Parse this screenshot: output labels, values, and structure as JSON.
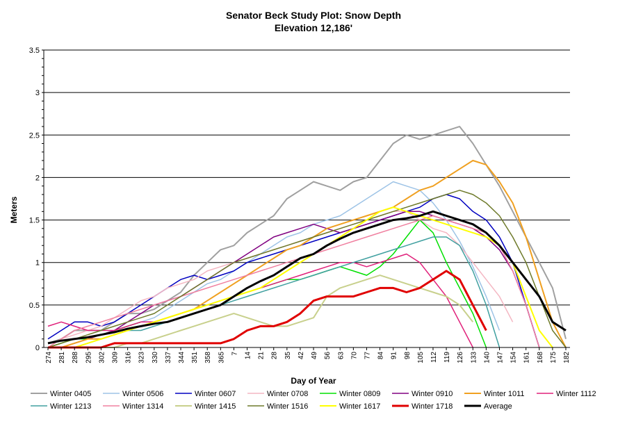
{
  "chart_data": {
    "type": "line",
    "title": "Senator Beck Study Plot: Snow Depth",
    "subtitle": "Elevation 12,186'",
    "xlabel": "Day of Year",
    "ylabel": "Meters",
    "ylim": [
      0,
      3.5
    ],
    "yticks": [
      "0",
      "0.5",
      "1",
      "1.5",
      "2",
      "2.5",
      "3",
      "3.5"
    ],
    "x": [
      "274",
      "281",
      "288",
      "295",
      "302",
      "309",
      "316",
      "323",
      "330",
      "337",
      "344",
      "351",
      "358",
      "365",
      "7",
      "14",
      "21",
      "28",
      "35",
      "42",
      "49",
      "56",
      "63",
      "70",
      "77",
      "84",
      "91",
      "98",
      "105",
      "112",
      "119",
      "126",
      "133",
      "140",
      "147",
      "154",
      "161",
      "168",
      "175",
      "182"
    ],
    "grid": "horizontal",
    "legend_position": "bottom",
    "series": [
      {
        "name": "Winter 0405",
        "color": "#a0a0a0",
        "width": 2,
        "values": [
          0.05,
          0.1,
          0.2,
          0.2,
          0.2,
          0.3,
          0.4,
          0.4,
          0.45,
          0.55,
          0.65,
          0.85,
          1.0,
          1.15,
          1.2,
          1.35,
          1.45,
          1.55,
          1.75,
          1.85,
          1.95,
          1.9,
          1.85,
          1.95,
          2.0,
          2.2,
          2.4,
          2.5,
          2.45,
          2.5,
          2.55,
          2.6,
          2.4,
          2.15,
          1.9,
          1.6,
          1.3,
          1.0,
          0.7,
          0.1
        ]
      },
      {
        "name": "Winter 0506",
        "color": "#9dc3e6",
        "width": 1.5,
        "values": [
          0.0,
          0.0,
          0.05,
          0.1,
          0.15,
          0.2,
          0.25,
          0.3,
          0.35,
          0.45,
          0.55,
          0.65,
          0.75,
          0.8,
          0.9,
          1.0,
          1.1,
          1.2,
          1.3,
          1.35,
          1.45,
          1.5,
          1.55,
          1.65,
          1.75,
          1.85,
          1.95,
          1.9,
          1.85,
          1.7,
          1.5,
          1.25,
          0.95,
          0.6,
          0.2,
          null,
          null,
          null,
          null,
          null
        ]
      },
      {
        "name": "Winter 0607",
        "color": "#0000c0",
        "width": 1.5,
        "values": [
          0.1,
          0.2,
          0.3,
          0.3,
          0.25,
          0.3,
          0.4,
          0.5,
          0.6,
          0.7,
          0.8,
          0.85,
          0.8,
          0.85,
          0.9,
          1.0,
          1.05,
          1.1,
          1.15,
          1.2,
          1.25,
          1.3,
          1.35,
          1.4,
          1.45,
          1.5,
          1.55,
          1.6,
          1.65,
          1.75,
          1.8,
          1.75,
          1.6,
          1.5,
          1.3,
          1.0,
          0.5,
          0.0,
          null,
          null
        ]
      },
      {
        "name": "Winter 0708",
        "color": "#f4b6c2",
        "width": 1.5,
        "values": [
          0.0,
          0.1,
          0.15,
          0.2,
          0.25,
          0.35,
          0.45,
          0.55,
          0.6,
          0.7,
          0.75,
          0.8,
          0.9,
          0.95,
          1.0,
          1.05,
          1.1,
          1.15,
          1.2,
          1.25,
          1.3,
          1.35,
          1.4,
          1.45,
          1.5,
          1.55,
          1.6,
          1.6,
          1.5,
          1.4,
          1.35,
          1.2,
          1.0,
          0.8,
          0.6,
          0.3,
          null,
          null,
          null,
          null
        ]
      },
      {
        "name": "Winter 0809",
        "color": "#00e000",
        "width": 1.5,
        "values": [
          0.0,
          0.05,
          0.1,
          0.1,
          0.15,
          0.2,
          0.25,
          0.3,
          0.3,
          0.35,
          0.4,
          0.45,
          0.5,
          0.55,
          0.6,
          0.65,
          0.7,
          0.75,
          0.8,
          0.8,
          0.85,
          0.9,
          0.95,
          0.9,
          0.85,
          0.95,
          1.1,
          1.3,
          1.5,
          1.35,
          1.0,
          0.7,
          0.4,
          0.0,
          null,
          null,
          null,
          null,
          null,
          null
        ]
      },
      {
        "name": "Winter 0910",
        "color": "#800080",
        "width": 1.5,
        "values": [
          0.0,
          0.0,
          0.05,
          0.1,
          0.15,
          0.2,
          0.3,
          0.4,
          0.5,
          0.55,
          0.6,
          0.7,
          0.8,
          0.9,
          1.0,
          1.1,
          1.2,
          1.3,
          1.35,
          1.4,
          1.45,
          1.4,
          1.35,
          1.4,
          1.45,
          1.5,
          1.55,
          1.6,
          1.6,
          1.55,
          1.5,
          1.45,
          1.4,
          1.3,
          1.15,
          0.9,
          0.5,
          0.0,
          null,
          null
        ]
      },
      {
        "name": "Winter 1011",
        "color": "#f0a020",
        "width": 2,
        "values": [
          0.0,
          0.0,
          0.05,
          0.1,
          0.1,
          0.15,
          0.2,
          0.25,
          0.3,
          0.35,
          0.4,
          0.45,
          0.55,
          0.65,
          0.75,
          0.85,
          0.95,
          1.05,
          1.15,
          1.2,
          1.3,
          1.4,
          1.45,
          1.5,
          1.55,
          1.6,
          1.65,
          1.75,
          1.85,
          1.9,
          2.0,
          2.1,
          2.2,
          2.15,
          1.95,
          1.7,
          1.3,
          0.8,
          0.3,
          0.0
        ]
      },
      {
        "name": "Winter 1112",
        "color": "#e0207a",
        "width": 1.5,
        "values": [
          0.25,
          0.3,
          0.25,
          0.2,
          0.2,
          0.2,
          0.25,
          0.3,
          0.3,
          0.35,
          0.4,
          0.45,
          0.5,
          0.55,
          0.6,
          0.65,
          0.7,
          0.75,
          0.8,
          0.85,
          0.9,
          0.95,
          1.0,
          1.0,
          0.95,
          1.0,
          1.05,
          1.1,
          1.0,
          0.8,
          0.6,
          0.3,
          0.0,
          null,
          null,
          null,
          null,
          null,
          null,
          null
        ]
      },
      {
        "name": "Winter 1213",
        "color": "#40a0a0",
        "width": 1.5,
        "values": [
          0.0,
          0.0,
          0.0,
          0.05,
          0.1,
          0.15,
          0.2,
          0.2,
          0.25,
          0.3,
          0.35,
          0.4,
          0.45,
          0.5,
          0.55,
          0.6,
          0.65,
          0.7,
          0.75,
          0.8,
          0.85,
          0.9,
          0.95,
          1.0,
          1.05,
          1.1,
          1.15,
          1.2,
          1.25,
          1.3,
          1.3,
          1.2,
          0.9,
          0.5,
          0.0,
          null,
          null,
          null,
          null,
          null
        ]
      },
      {
        "name": "Winter 1314",
        "color": "#f080a0",
        "width": 1.5,
        "values": [
          0.0,
          0.1,
          0.2,
          0.25,
          0.3,
          0.35,
          0.4,
          0.45,
          0.5,
          0.55,
          0.6,
          0.65,
          0.7,
          0.75,
          0.8,
          0.85,
          0.9,
          0.95,
          1.0,
          1.05,
          1.1,
          1.15,
          1.2,
          1.25,
          1.3,
          1.35,
          1.4,
          1.45,
          1.5,
          1.55,
          1.5,
          1.45,
          1.4,
          1.35,
          1.2,
          0.9,
          0.5,
          0.0,
          null,
          null
        ]
      },
      {
        "name": "Winter 1415",
        "color": "#c8d08c",
        "width": 2,
        "values": [
          0.0,
          0.0,
          0.0,
          0.0,
          0.0,
          0.0,
          0.05,
          0.05,
          0.1,
          0.15,
          0.2,
          0.25,
          0.3,
          0.35,
          0.4,
          0.35,
          0.3,
          0.25,
          0.25,
          0.3,
          0.35,
          0.6,
          0.7,
          0.75,
          0.8,
          0.85,
          0.8,
          0.75,
          0.7,
          0.65,
          0.6,
          0.5,
          0.3,
          null,
          null,
          null,
          null,
          null,
          null,
          null
        ]
      },
      {
        "name": "Winter 1516",
        "color": "#6e7a2a",
        "width": 1.5,
        "values": [
          0.0,
          0.05,
          0.1,
          0.15,
          0.2,
          0.25,
          0.3,
          0.35,
          0.4,
          0.5,
          0.6,
          0.7,
          0.8,
          0.9,
          1.0,
          1.05,
          1.1,
          1.15,
          1.2,
          1.25,
          1.3,
          1.35,
          1.4,
          1.45,
          1.5,
          1.55,
          1.6,
          1.65,
          1.7,
          1.75,
          1.8,
          1.85,
          1.8,
          1.7,
          1.55,
          1.3,
          1.0,
          0.6,
          0.2,
          0.0
        ]
      },
      {
        "name": "Winter 1617",
        "color": "#ffff00",
        "width": 2,
        "values": [
          0.0,
          0.0,
          0.0,
          0.05,
          0.1,
          0.15,
          0.2,
          0.25,
          0.3,
          0.35,
          0.4,
          0.45,
          0.5,
          0.55,
          0.6,
          0.65,
          0.7,
          0.8,
          0.9,
          1.0,
          1.1,
          1.2,
          1.3,
          1.4,
          1.5,
          1.6,
          1.65,
          1.6,
          1.55,
          1.5,
          1.45,
          1.4,
          1.35,
          1.3,
          1.2,
          1.0,
          0.6,
          0.2,
          0.0,
          null
        ]
      },
      {
        "name": "Winter 1718",
        "color": "#e00000",
        "width": 3,
        "values": [
          0.0,
          0.0,
          0.0,
          0.0,
          0.0,
          0.05,
          0.05,
          0.05,
          0.05,
          0.05,
          0.05,
          0.05,
          0.05,
          0.05,
          0.1,
          0.2,
          0.25,
          0.25,
          0.3,
          0.4,
          0.55,
          0.6,
          0.6,
          0.6,
          0.65,
          0.7,
          0.7,
          0.65,
          0.7,
          0.8,
          0.9,
          0.8,
          0.5,
          0.2,
          null,
          null,
          null,
          null,
          null,
          null
        ]
      },
      {
        "name": "Average",
        "color": "#000000",
        "width": 3,
        "values": [
          0.05,
          0.08,
          0.1,
          0.12,
          0.15,
          0.18,
          0.22,
          0.25,
          0.28,
          0.3,
          0.35,
          0.4,
          0.45,
          0.5,
          0.6,
          0.7,
          0.78,
          0.85,
          0.95,
          1.05,
          1.1,
          1.2,
          1.28,
          1.35,
          1.4,
          1.45,
          1.5,
          1.52,
          1.55,
          1.6,
          1.55,
          1.5,
          1.45,
          1.35,
          1.2,
          1.0,
          0.8,
          0.6,
          0.3,
          0.2
        ]
      }
    ]
  }
}
